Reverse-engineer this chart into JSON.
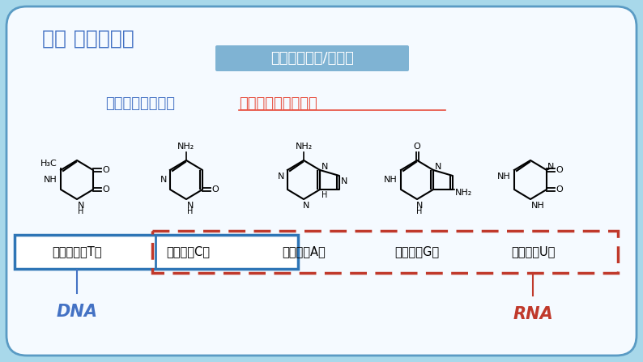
{
  "bg_outer": "#a8d8ea",
  "bg_inner": "#f5faff",
  "title": "一、 核酸的组成",
  "title_color": "#4472c4",
  "badge_text": "碱基（某嘌呤/嘧啶）",
  "badge_bg": "#7fb3d3",
  "badge_text_color": "#ffffff",
  "subtitle_prefix": "碱基的共同点是：",
  "subtitle_prefix_color": "#4472c4",
  "subtitle_answer": "均为含氮杂环有机物",
  "subtitle_answer_color": "#e74c3c",
  "dna_label": "DNA",
  "rna_label": "RNA",
  "dna_color": "#4472c4",
  "rna_color": "#c0392b",
  "blue_box_color": "#2e75b6",
  "red_dashed_color": "#c0392b",
  "compounds": [
    {
      "name": "胸腺嘧啶（T）"
    },
    {
      "name": "胞嘧啶（C）"
    },
    {
      "name": "腺嘌呤（A）"
    },
    {
      "name": "鸟嘌呤（G）"
    },
    {
      "name": "尿嘧啶（U）"
    }
  ]
}
